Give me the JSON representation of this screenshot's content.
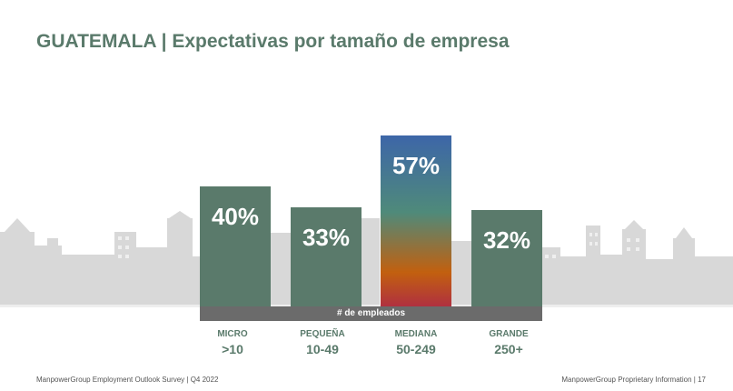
{
  "title": "GUATEMALA | Expectativas por tamaño de empresa",
  "chart_data": {
    "type": "bar",
    "title": "GUATEMALA | Expectativas por tamaño de empresa",
    "xlabel": "# de empleados",
    "ylabel": "",
    "categories": [
      "MICRO",
      "PEQUEÑA",
      "MEDIANA",
      "GRANDE"
    ],
    "ranges": [
      ">10",
      "10-49",
      "50-249",
      "250+"
    ],
    "values": [
      40,
      33,
      57,
      32
    ],
    "labels": [
      "40%",
      "33%",
      "57%",
      "32%"
    ],
    "ylim": [
      0,
      60
    ],
    "colors": {
      "bar": "#5a7a6b",
      "highlight_gradient": [
        "#3d66a8",
        "#4f8a7a",
        "#c2600f",
        "#b03040"
      ]
    }
  },
  "footer": {
    "left": "ManpowerGroup Employment Outlook Survey  |  Q4 2022",
    "right": "ManpowerGroup Proprietary Information  |  17"
  }
}
